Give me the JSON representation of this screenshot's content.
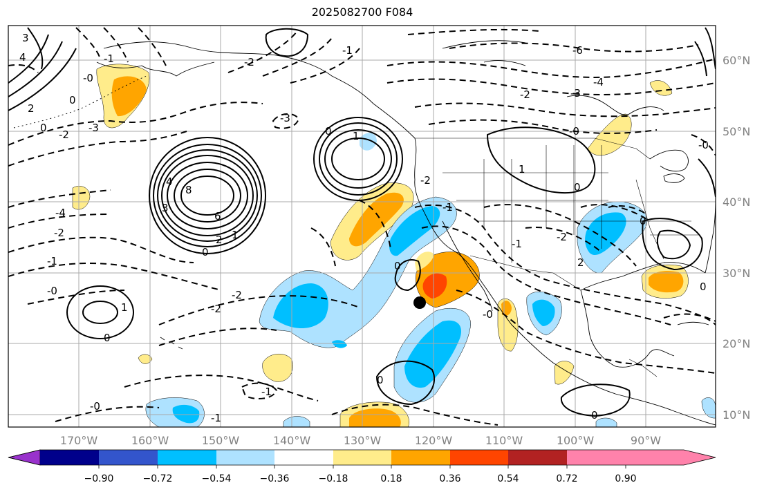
{
  "title": "2025082700 F084",
  "lat_labels": [
    "60°N",
    "50°N",
    "40°N",
    "30°N",
    "20°N",
    "10°N"
  ],
  "lon_labels": [
    "170°W",
    "160°W",
    "150°W",
    "140°W",
    "130°W",
    "120°W",
    "110°W",
    "100°W",
    "90°W"
  ],
  "colorbar": {
    "colors": [
      "#9932cc",
      "#00008b",
      "#3355cc",
      "#00bfff",
      "#aee2ff",
      "#ffffff",
      "#ffec8b",
      "#ffa500",
      "#ff4500",
      "#b22222",
      "#ff82ab"
    ],
    "tick_labels": [
      "−0.90",
      "−0.72",
      "−0.54",
      "−0.36",
      "−0.18",
      "0.18",
      "0.36",
      "0.54",
      "0.72",
      "0.90"
    ]
  },
  "contour_labels": [
    "3",
    "4",
    "2",
    "0",
    "-2",
    "-3",
    "0",
    "-1",
    "-0",
    "8",
    "6",
    "4",
    "2",
    "0",
    "3",
    "1",
    "-3",
    "-4",
    "-2",
    "-1",
    "-0",
    "-2",
    "-2",
    "-1",
    "0",
    "-1",
    "-0",
    "1",
    "0",
    "0",
    "-0",
    "0",
    "-1",
    "-6",
    "-4",
    "-3",
    "-2",
    "-0",
    "1",
    "0",
    "-1",
    "-2",
    "2",
    "0",
    "-0",
    "0",
    "1",
    "-1",
    "-2",
    "-2",
    "0"
  ],
  "marker": "storm-center"
}
